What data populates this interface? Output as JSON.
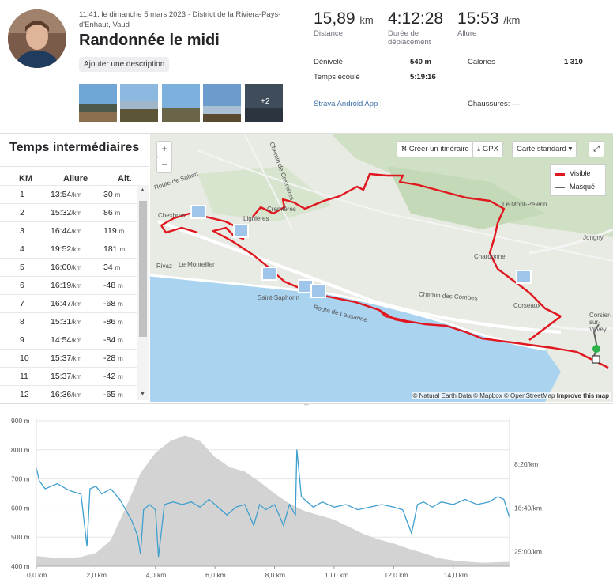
{
  "activity": {
    "meta": "11:41, le dimanche 5 mars 2023 · District de la Riviera-Pays-d'Enhaut, Vaud",
    "title": "Randonnée le midi",
    "add_description": "Ajouter une description",
    "photos_more": "+2"
  },
  "stats": {
    "distance": {
      "value": "15,89",
      "unit": "km",
      "label": "Distance"
    },
    "duration": {
      "value": "4:12:28",
      "label": "Durée de déplacement"
    },
    "pace": {
      "value": "15:53",
      "unit": "/km",
      "label": "Allure"
    },
    "details": [
      {
        "label": "Dénivelé",
        "value": "540 m"
      },
      {
        "label": "Temps écoulé",
        "value": "5:19:16"
      }
    ],
    "calories": {
      "label": "Calories",
      "value": "1 310"
    },
    "device": "Strava Android App",
    "shoes": "Chaussures: —"
  },
  "splits": {
    "title": "Temps intermédiaires",
    "headers": [
      "KM",
      "Allure",
      "Alt."
    ],
    "pace_unit": "/km",
    "alt_unit": "m",
    "rows": [
      {
        "km": "1",
        "pace": "13:54",
        "alt": "30"
      },
      {
        "km": "2",
        "pace": "15:32",
        "alt": "86"
      },
      {
        "km": "3",
        "pace": "16:44",
        "alt": "119"
      },
      {
        "km": "4",
        "pace": "19:52",
        "alt": "181"
      },
      {
        "km": "5",
        "pace": "16:00",
        "alt": "34"
      },
      {
        "km": "6",
        "pace": "16:19",
        "alt": "-48"
      },
      {
        "km": "7",
        "pace": "16:47",
        "alt": "-68"
      },
      {
        "km": "8",
        "pace": "15:31",
        "alt": "-86"
      },
      {
        "km": "9",
        "pace": "14:54",
        "alt": "-84"
      },
      {
        "km": "10",
        "pace": "15:37",
        "alt": "-28"
      },
      {
        "km": "11",
        "pace": "15:37",
        "alt": "-42"
      },
      {
        "km": "12",
        "pace": "16:36",
        "alt": "-65"
      }
    ]
  },
  "map": {
    "create_route": "Créer un itinéraire",
    "gpx": "GPX",
    "style": "Carte standard",
    "zoom_in": "+",
    "zoom_out": "−",
    "legend_visible": "Visible",
    "legend_hidden": "Masqué",
    "route_color": "#e0171f",
    "hidden_color": "#666666",
    "places": [
      "Chexbres",
      "Rivaz",
      "Le Monteiller",
      "Saint-Saphorin",
      "Route de Lausanne",
      "Chardonne",
      "Le Mont-Pèlerin",
      "Corseaux",
      "Jongny",
      "Chemin des Combes",
      "Cremières",
      "Chemin de Crémières",
      "Route de Suhen",
      "Lignières",
      "Corsier-sur-Vevey"
    ],
    "attribution": "© Natural Earth Data © Mapbox © OpenStreetMap",
    "improve": "Improve this map"
  },
  "chart_data": {
    "type": "area",
    "x_unit": "km",
    "xlim": [
      0,
      15.89
    ],
    "x_ticks": [
      "0,0 km",
      "2,0 km",
      "4,0 km",
      "6,0 km",
      "8,0 km",
      "10,0 km",
      "12,0 km",
      "14,0 km"
    ],
    "y_left_ticks": [
      "400 m",
      "500 m",
      "600 m",
      "700 m",
      "800 m",
      "900 m"
    ],
    "y_right_ticks": [
      "8:20/km",
      "16:40/km",
      "25:00/km"
    ],
    "ylim_left": [
      400,
      900
    ],
    "elevation": {
      "color": "#d3d3d3",
      "x": [
        0,
        0.5,
        1,
        1.5,
        2,
        2.5,
        3,
        3.5,
        4,
        4.5,
        5,
        5.5,
        6,
        6.5,
        7,
        7.5,
        8,
        8.5,
        9,
        9.5,
        10,
        10.5,
        11,
        11.5,
        12,
        12.5,
        13,
        13.5,
        14,
        14.5,
        15,
        15.89
      ],
      "y": [
        435,
        430,
        428,
        432,
        445,
        490,
        600,
        720,
        790,
        830,
        850,
        830,
        775,
        740,
        725,
        690,
        650,
        615,
        590,
        575,
        560,
        535,
        510,
        492,
        478,
        460,
        445,
        428,
        420,
        415,
        412,
        415
      ]
    },
    "pace": {
      "color": "#3f9fce",
      "x": [
        0,
        0.1,
        0.3,
        0.5,
        0.7,
        1,
        1.2,
        1.5,
        1.7,
        1.8,
        2,
        2.2,
        2.5,
        2.8,
        3,
        3.2,
        3.4,
        3.5,
        3.6,
        3.8,
        4,
        4.1,
        4.3,
        4.6,
        4.9,
        5.2,
        5.5,
        5.8,
        6.1,
        6.4,
        6.7,
        7,
        7.3,
        7.5,
        7.7,
        8,
        8.3,
        8.5,
        8.7,
        8.75,
        8.9,
        9,
        9.3,
        9.6,
        10,
        10.4,
        10.8,
        11.2,
        11.6,
        12,
        12.3,
        12.6,
        12.8,
        13,
        13.3,
        13.6,
        14,
        14.4,
        14.8,
        15.2,
        15.5,
        15.7,
        15.89
      ],
      "y": [
        "9:00",
        "11:30",
        "13:00",
        "12:30",
        "12:00",
        "13:00",
        "13:30",
        "14:00",
        "24:00",
        "13:00",
        "12:30",
        "14:00",
        "13:00",
        "15:00",
        "17:00",
        "19:00",
        "22:00",
        "25:30",
        "17:00",
        "16:00",
        "17:00",
        "26:00",
        "16:00",
        "15:30",
        "16:00",
        "15:30",
        "16:30",
        "15:00",
        "16:30",
        "18:00",
        "16:30",
        "16:00",
        "20:00",
        "16:00",
        "17:00",
        "16:00",
        "20:00",
        "16:00",
        "18:00",
        "5:30",
        "14:30",
        "15:00",
        "16:30",
        "15:30",
        "16:30",
        "16:00",
        "17:00",
        "16:30",
        "16:00",
        "16:30",
        "17:00",
        "21:30",
        "16:00",
        "15:30",
        "16:30",
        "15:30",
        "16:00",
        "15:00",
        "16:00",
        "15:30",
        "14:30",
        "15:00",
        "18:30"
      ]
    }
  }
}
